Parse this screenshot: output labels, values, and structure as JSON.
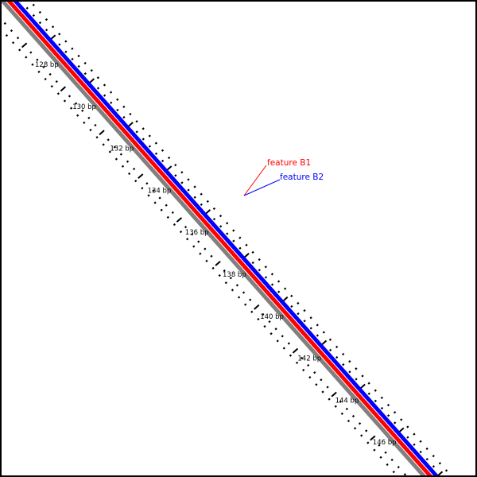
{
  "colors": {
    "border": "#000000",
    "background": "#ffffff",
    "strand_gray": "#808080",
    "strand_red": "#ff0000",
    "strand_blue": "#0000ff",
    "ticks": "#000000"
  },
  "strands": [
    {
      "id": "gray",
      "color": "#808080"
    },
    {
      "id": "red",
      "color": "#ff0000"
    },
    {
      "id": "blue",
      "color": "#0000ff"
    }
  ],
  "position_labels": [
    "128 bp",
    "130 bp",
    "132 bp",
    "134 bp",
    "136 bp",
    "138 bp",
    "140 bp",
    "142 bp",
    "144 bp",
    "146 bp"
  ],
  "features": [
    {
      "label": "feature B1",
      "color": "#ff0000"
    },
    {
      "label": "feature B2",
      "color": "#0000ff"
    }
  ]
}
